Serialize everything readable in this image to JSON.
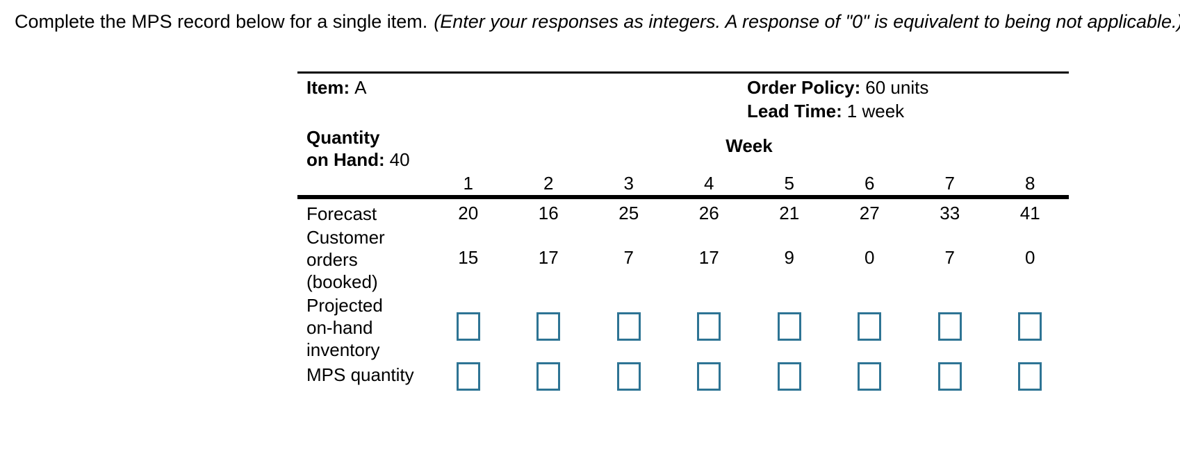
{
  "page": {
    "instruction_main": "Complete the MPS record below for a single item.",
    "instruction_note": "(Enter your responses as integers. A response of \"0\" is equivalent to being not applicable.)"
  },
  "record": {
    "item_label": "Item:",
    "item_value": "A",
    "order_policy_label": "Order Policy:",
    "order_policy_value": "60 units",
    "lead_time_label": "Lead Time:",
    "lead_time_value": "1 week",
    "quantity_on_hand_label_line1": "Quantity",
    "quantity_on_hand_label_line2": "on Hand:",
    "quantity_on_hand_value": "40",
    "week_header": "Week",
    "week_numbers": [
      "1",
      "2",
      "3",
      "4",
      "5",
      "6",
      "7",
      "8"
    ],
    "rows": [
      {
        "name": "forecast",
        "label_lines": [
          "Forecast"
        ],
        "values": [
          "20",
          "16",
          "25",
          "26",
          "21",
          "27",
          "33",
          "41"
        ]
      },
      {
        "name": "customer_orders_booked",
        "label_lines": [
          "Customer",
          "orders",
          "(booked)"
        ],
        "values": [
          "15",
          "17",
          "7",
          "17",
          "9",
          "0",
          "7",
          "0"
        ]
      },
      {
        "name": "projected_on_hand_inventory",
        "label_lines": [
          "Projected",
          "on-hand",
          "inventory"
        ],
        "input": true
      },
      {
        "name": "mps_quantity",
        "label_lines": [
          "MPS quantity"
        ],
        "input": true
      }
    ],
    "colors": {
      "answer_box_border": "#2e7494",
      "text": "#000000"
    }
  }
}
